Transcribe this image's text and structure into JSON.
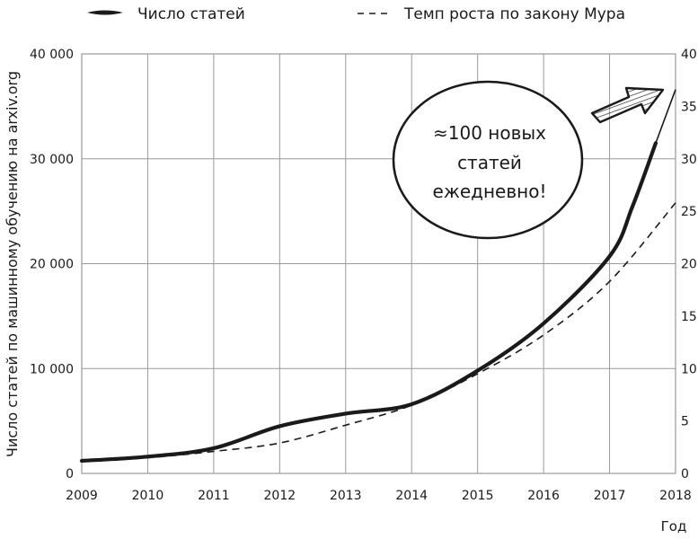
{
  "legend": {
    "solid_label": "Число статей",
    "dashed_label": "Темп роста по закону Мура"
  },
  "axes": {
    "ylabel": "Число статей по машинному обучению на arxiv.org",
    "xlabel": "Год",
    "left_ticks": [
      "0",
      "10 000",
      "20 000",
      "30 000",
      "40 000"
    ],
    "right_ticks": [
      "0",
      "5",
      "10",
      "15",
      "20",
      "25",
      "30",
      "35",
      "40"
    ],
    "x_ticks": [
      "2009",
      "2010",
      "2011",
      "2012",
      "2013",
      "2014",
      "2015",
      "2016",
      "2017",
      "2018"
    ]
  },
  "annotation": {
    "line1": "≈100 новых",
    "line2": "статей",
    "line3": "ежедневно!"
  },
  "colors": {
    "line": "#1a1a1a",
    "grid": "#9a9a9a",
    "background": "#ffffff"
  },
  "chart_data": {
    "type": "line",
    "title": "",
    "xlabel": "Год",
    "ylabel": "Число статей по машинному обучению на arxiv.org",
    "ylim": [
      0,
      40000
    ],
    "xlim": [
      2009,
      2018
    ],
    "y2lim": [
      0,
      40
    ],
    "grid": true,
    "legend_position": "top",
    "x": [
      2009,
      2010,
      2011,
      2012,
      2013,
      2014,
      2015,
      2016,
      2017,
      2018
    ],
    "series": [
      {
        "name": "Число статей",
        "style": "solid",
        "values": [
          1200,
          1600,
          2400,
          4500,
          5700,
          6600,
          9800,
          14300,
          20700,
          36600
        ]
      },
      {
        "name": "Темп роста по закону Мура",
        "style": "dashed",
        "values": [
          1200,
          1500,
          2100,
          2900,
          4600,
          6500,
          9500,
          13200,
          18300,
          25800
        ]
      }
    ],
    "annotations": [
      "≈100 новых статей ежедневно!"
    ]
  }
}
